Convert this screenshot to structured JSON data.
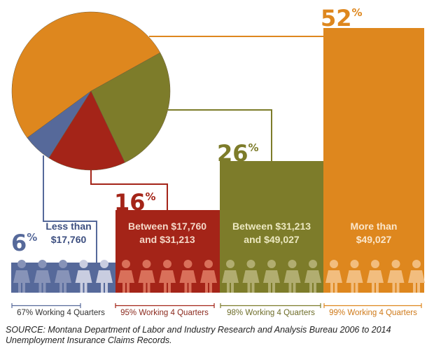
{
  "chart_data": {
    "type": "pie",
    "categories": [
      "Less than $17,760",
      "Between $17,760 and $31,213",
      "Between $31,213 and $49,027",
      "More than $49,027"
    ],
    "values": [
      6,
      16,
      26,
      52
    ],
    "value_labels": [
      "6",
      "16",
      "26",
      "52"
    ],
    "unit": "%",
    "colors": [
      "#56699a",
      "#a42418",
      "#7d7c2a",
      "#de871e"
    ],
    "people_colors": [
      "#8793b8",
      "#d9705a",
      "#b1ad70",
      "#f2bd7e"
    ],
    "light_people_blue": "#c9cde0",
    "working_labels": [
      "67% Working 4 Quarters",
      "95% Working 4 Quarters",
      "98% Working 4 Quarters",
      "99% Working 4 Quarters"
    ],
    "category_lines": [
      [
        "Less than",
        "$17,760"
      ],
      [
        "Between $17,760",
        "and $31,213"
      ],
      [
        "Between $31,213",
        "and $49,027"
      ],
      [
        "More than",
        "$49,027"
      ]
    ]
  },
  "source": "SOURCE: Montana Department of Labor and Industry Research and Analysis Bureau 2006 to 2014 Unemployment Insurance Claims Records."
}
